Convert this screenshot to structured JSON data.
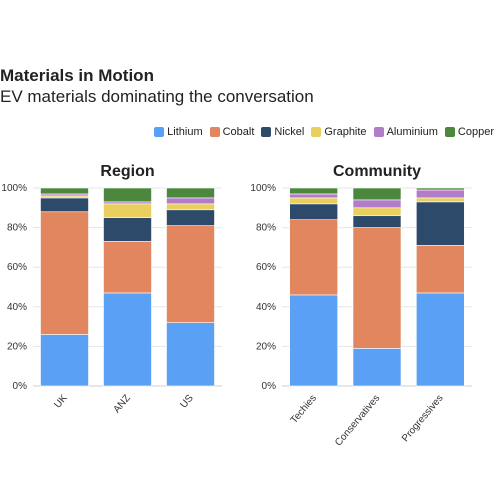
{
  "header": {
    "title": "Materials in Motion",
    "subtitle": "EV materials dominating the conversation"
  },
  "legend": [
    {
      "label": "Lithium",
      "color": "#5aa1f5"
    },
    {
      "label": "Cobalt",
      "color": "#e1865e"
    },
    {
      "label": "Nickel",
      "color": "#2d4a6b"
    },
    {
      "label": "Graphite",
      "color": "#e8cf5e"
    },
    {
      "label": "Aluminium",
      "color": "#b37cc9"
    },
    {
      "label": "Copper",
      "color": "#4b883d"
    }
  ],
  "chart_data": [
    {
      "type": "bar",
      "stacked": true,
      "title": "Region",
      "categories": [
        "UK",
        "ANZ",
        "US"
      ],
      "ylim": [
        0,
        100
      ],
      "yticks": [
        "0%",
        "20%",
        "40%",
        "60%",
        "80%",
        "100%"
      ],
      "series": [
        {
          "name": "Lithium",
          "values": [
            26,
            47,
            32
          ]
        },
        {
          "name": "Cobalt",
          "values": [
            62,
            26,
            49
          ]
        },
        {
          "name": "Nickel",
          "values": [
            7,
            12,
            8
          ]
        },
        {
          "name": "Graphite",
          "values": [
            1,
            7,
            3
          ]
        },
        {
          "name": "Aluminium",
          "values": [
            1,
            1,
            3
          ]
        },
        {
          "name": "Copper",
          "values": [
            3,
            7,
            5
          ]
        }
      ]
    },
    {
      "type": "bar",
      "stacked": true,
      "title": "Community",
      "categories": [
        "Techies",
        "Conservatives",
        "Progressives"
      ],
      "ylim": [
        0,
        100
      ],
      "yticks": [
        "0%",
        "20%",
        "40%",
        "60%",
        "80%",
        "100%"
      ],
      "series": [
        {
          "name": "Lithium",
          "values": [
            46,
            19,
            47
          ]
        },
        {
          "name": "Cobalt",
          "values": [
            38,
            61,
            24
          ]
        },
        {
          "name": "Nickel",
          "values": [
            8,
            6,
            22
          ]
        },
        {
          "name": "Graphite",
          "values": [
            3,
            4,
            2
          ]
        },
        {
          "name": "Aluminium",
          "values": [
            2,
            4,
            4
          ]
        },
        {
          "name": "Copper",
          "values": [
            3,
            6,
            1
          ]
        }
      ]
    }
  ]
}
